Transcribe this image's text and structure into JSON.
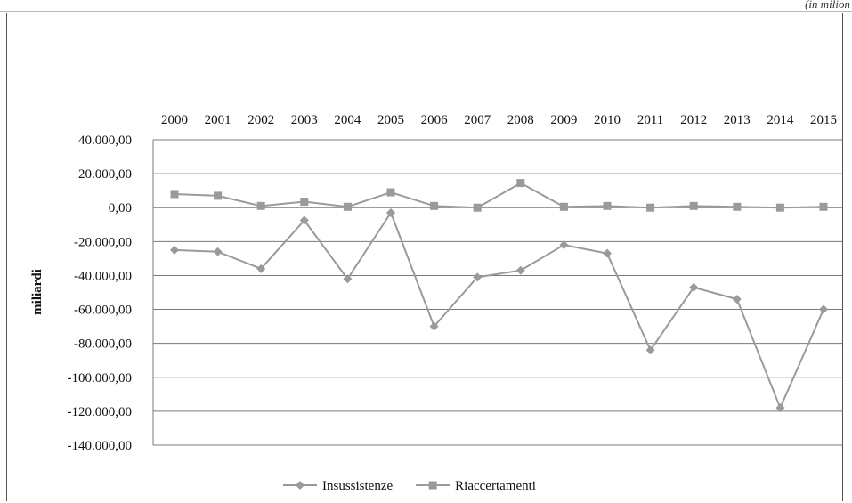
{
  "corner_note": "(in milion",
  "chart_data": {
    "type": "line",
    "title": "",
    "xlabel": "",
    "ylabel": "miliardi",
    "categories": [
      "2000",
      "2001",
      "2002",
      "2003",
      "2004",
      "2005",
      "2006",
      "2007",
      "2008",
      "2009",
      "2010",
      "2011",
      "2012",
      "2013",
      "2014",
      "2015"
    ],
    "y_ticks": [
      "40.000,00",
      "20.000,00",
      "0,00",
      "-20.000,00",
      "-40.000,00",
      "-60.000,00",
      "-80.000,00",
      "-100.000,00",
      "-120.000,00",
      "-140.000,00"
    ],
    "ylim": [
      -140000,
      40000
    ],
    "grid": true,
    "legend_position": "bottom",
    "series": [
      {
        "name": "Insussistenze",
        "marker": "diamond",
        "color": "#9a9a9a",
        "values": [
          -25000,
          -26000,
          -36000,
          -7500,
          -42000,
          -3000,
          -70000,
          -41000,
          -37000,
          -22000,
          -27000,
          -84000,
          -47000,
          -54000,
          -118000,
          -60000
        ]
      },
      {
        "name": "Riaccertamenti",
        "marker": "square",
        "color": "#9a9a9a",
        "values": [
          8000,
          7000,
          1000,
          3500,
          500,
          9000,
          1000,
          0,
          14500,
          500,
          1000,
          0,
          1000,
          500,
          0,
          500
        ]
      }
    ]
  }
}
